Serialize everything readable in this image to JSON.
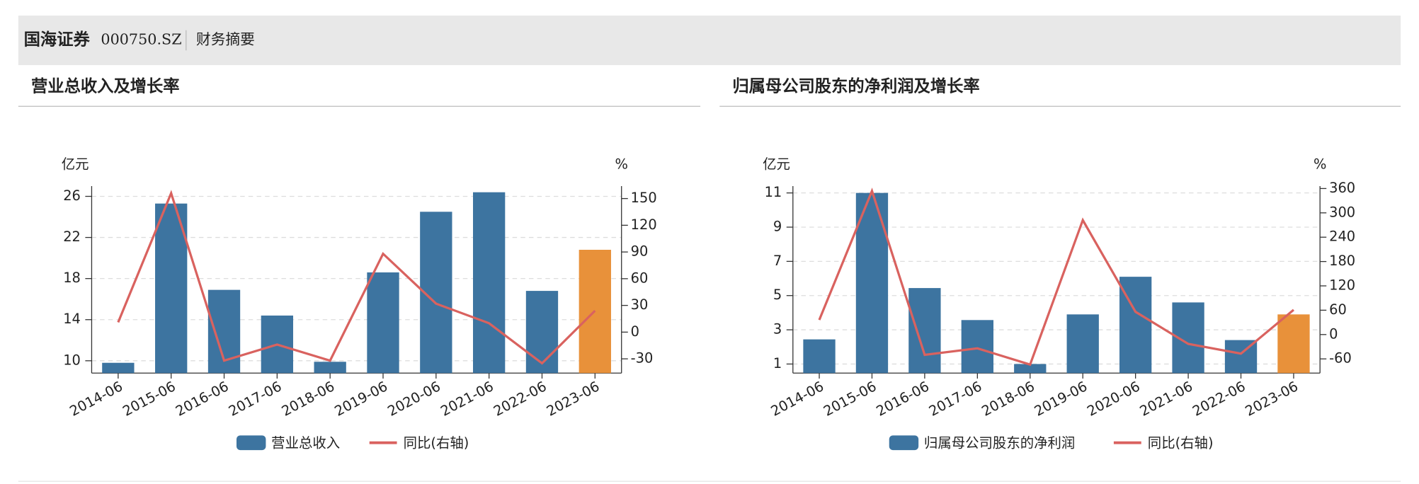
{
  "header": {
    "company": "国海证券",
    "code": "000750.SZ",
    "section": "财务摘要"
  },
  "chart_data": [
    {
      "type": "bar",
      "title": "营业总收入及增长率",
      "ylabel": "亿元",
      "y2label": "%",
      "categories": [
        "2014-06",
        "2015-06",
        "2016-06",
        "2017-06",
        "2018-06",
        "2019-06",
        "2020-06",
        "2021-06",
        "2022-06",
        "2023-06"
      ],
      "series": [
        {
          "name": "营业总收入",
          "type": "bar",
          "color": "#3d74a0",
          "colors": [
            "#3d74a0",
            "#3d74a0",
            "#3d74a0",
            "#3d74a0",
            "#3d74a0",
            "#3d74a0",
            "#3d74a0",
            "#3d74a0",
            "#3d74a0",
            "#e8913a"
          ],
          "values": [
            9.8,
            25.3,
            16.9,
            14.4,
            9.9,
            18.6,
            24.5,
            26.4,
            16.8,
            20.8
          ]
        },
        {
          "name": "同比(右轴)",
          "type": "line",
          "axis": "y2",
          "color": "#d9625f",
          "values": [
            11,
            156,
            -32,
            -14,
            -32,
            88,
            32,
            10,
            -35,
            24
          ]
        }
      ],
      "ylim": [
        8.8,
        27
      ],
      "yticks": [
        10,
        14,
        18,
        22,
        26
      ],
      "y2lim": [
        -46,
        164
      ],
      "y2ticks": [
        150,
        120,
        90,
        60,
        30,
        0,
        -30
      ],
      "grid": true
    },
    {
      "type": "bar",
      "title": "归属母公司股东的净利润及增长率",
      "ylabel": "亿元",
      "y2label": "%",
      "categories": [
        "2014-06",
        "2015-06",
        "2016-06",
        "2017-06",
        "2018-06",
        "2019-06",
        "2020-06",
        "2021-06",
        "2022-06",
        "2023-06"
      ],
      "series": [
        {
          "name": "归属母公司股东的净利润",
          "type": "bar",
          "color": "#3d74a0",
          "colors": [
            "#3d74a0",
            "#3d74a0",
            "#3d74a0",
            "#3d74a0",
            "#3d74a0",
            "#3d74a0",
            "#3d74a0",
            "#3d74a0",
            "#3d74a0",
            "#e8913a"
          ],
          "values": [
            2.44,
            11,
            5.44,
            3.57,
            1.0,
            3.9,
            6.1,
            4.6,
            2.4,
            3.9
          ]
        },
        {
          "name": "同比(右轴)",
          "type": "line",
          "axis": "y2",
          "color": "#d9625f",
          "values": [
            36,
            354,
            -50,
            -34,
            -74,
            282,
            56,
            -23,
            -47,
            61
          ]
        }
      ],
      "ylim": [
        0.47,
        11.4
      ],
      "yticks": [
        1,
        3,
        5,
        7,
        9,
        11
      ],
      "y2lim": [
        -95,
        366
      ],
      "y2ticks": [
        360,
        300,
        240,
        180,
        120,
        60,
        0,
        -60
      ],
      "grid": true
    }
  ]
}
